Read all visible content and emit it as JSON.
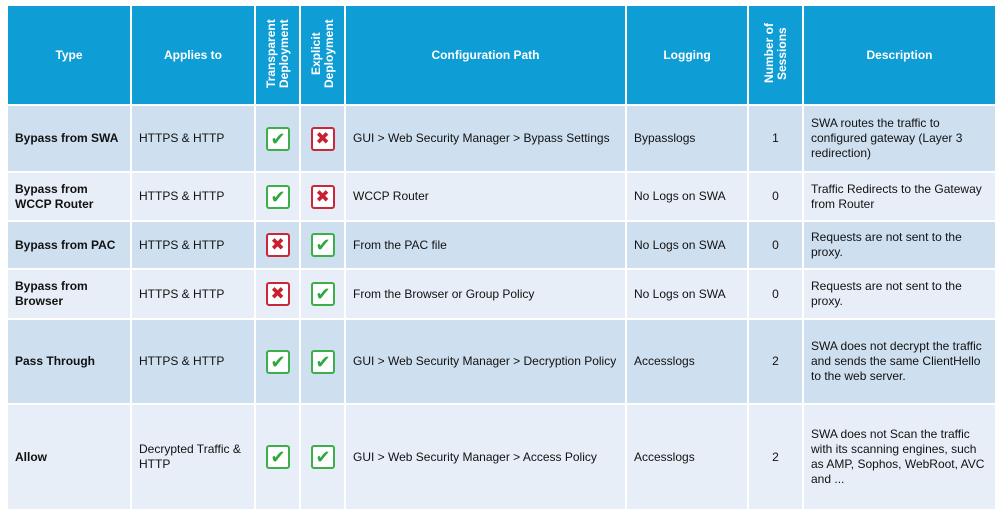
{
  "headers": {
    "type": "Type",
    "applies_to": "Applies to",
    "transparent": "Transparent Deployment",
    "explicit": "Explicit Deployment",
    "config_path": "Configuration Path",
    "logging": "Logging",
    "sessions": "Number of Sessions",
    "description": "Description"
  },
  "colors": {
    "header": "#0f9dd5",
    "row_odd": "#cedff0",
    "row_even": "#e7eef7",
    "check": "#2ea83d",
    "cross": "#c8202f"
  },
  "rows": [
    {
      "type": "Bypass from SWA",
      "applies_to": "HTTPS & HTTP",
      "transparent": "check-icon",
      "explicit": "cross-icon",
      "config_path": "GUI > Web Security Manager > Bypass Settings",
      "logging": "Bypasslogs",
      "sessions": "1",
      "description": "SWA routes the traffic to configured gateway (Layer 3 redirection)"
    },
    {
      "type": "Bypass from WCCP Router",
      "applies_to": "HTTPS & HTTP",
      "transparent": "check-icon",
      "explicit": "cross-icon",
      "config_path": "WCCP Router",
      "logging": "No Logs on SWA",
      "sessions": "0",
      "description": "Traffic Redirects to the Gateway from Router"
    },
    {
      "type": "Bypass from PAC",
      "applies_to": "HTTPS & HTTP",
      "transparent": "cross-icon",
      "explicit": "check-icon",
      "config_path": "From the PAC file",
      "logging": "No Logs on SWA",
      "sessions": "0",
      "description": "Requests are not sent to the proxy."
    },
    {
      "type": "Bypass from Browser",
      "applies_to": "HTTPS & HTTP",
      "transparent": "cross-icon",
      "explicit": "check-icon",
      "config_path": "From the Browser or Group Policy",
      "logging": "No Logs on SWA",
      "sessions": "0",
      "description": "Requests are not sent to the proxy."
    },
    {
      "type": "Pass Through",
      "applies_to": "HTTPS & HTTP",
      "transparent": "check-icon",
      "explicit": "check-icon",
      "config_path": "GUI > Web Security Manager >  Decryption Policy",
      "logging": "Accesslogs",
      "sessions": "2",
      "description": "SWA does not decrypt the traffic and sends the same ClientHello to the web server."
    },
    {
      "type": "Allow",
      "applies_to": "Decrypted Traffic & HTTP",
      "transparent": "check-icon",
      "explicit": "check-icon",
      "config_path": "GUI > Web Security Manager >  Access Policy",
      "logging": "Accesslogs",
      "sessions": "2",
      "description": "SWA does not Scan the traffic with its scanning engines, such as AMP, Sophos, WebRoot, AVC and ..."
    }
  ]
}
